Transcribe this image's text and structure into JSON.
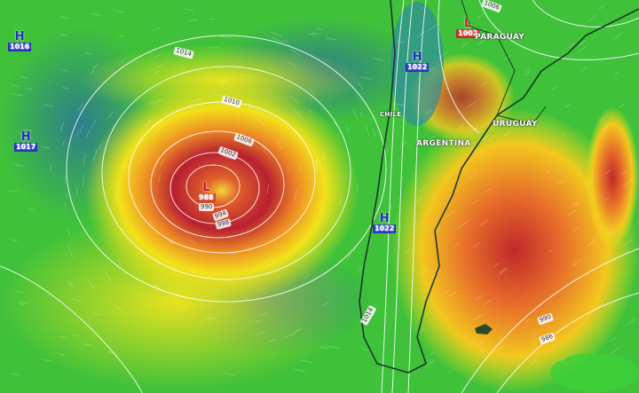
{
  "pressure_centers": [
    {
      "type": "H",
      "value": "1016",
      "color": "#2233bb"
    },
    {
      "type": "H",
      "value": "1017",
      "color": "#2233bb"
    },
    {
      "type": "L",
      "value": "988",
      "color": "#cc2222"
    },
    {
      "type": "H",
      "value": "1022",
      "color": "#2233bb"
    },
    {
      "type": "H",
      "value": "1022",
      "color": "#2233bb"
    },
    {
      "type": "L",
      "value": "1002",
      "color": "#cc2222"
    }
  ],
  "isobar_labels": [
    "1014",
    "1010",
    "1006",
    "1002",
    "990",
    "994",
    "998",
    "1006",
    "1014",
    "990",
    "986"
  ],
  "countries": [
    "PARAGUAY",
    "CHILE",
    "ARGENTINA",
    "URUGUAY"
  ],
  "color_scale": {
    "calm": "#2a8f7a",
    "light": "#3ccf3a",
    "moderate": "#f2e21a",
    "strong": "#f08a1e",
    "severe": "#b8182a"
  }
}
